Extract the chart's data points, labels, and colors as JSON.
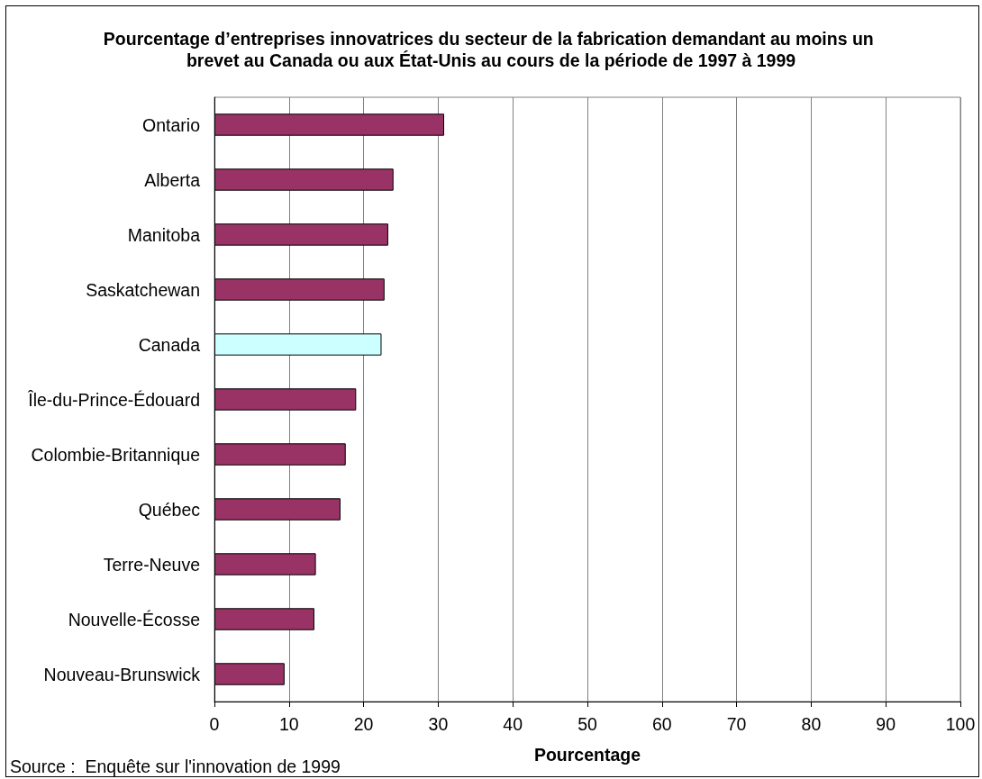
{
  "chart_data": {
    "type": "bar",
    "orientation": "horizontal",
    "title": "Pourcentage d’entreprises innovatrices du secteur de la fabrication demandant au moins un brevet au Canada ou aux État-Unis au cours de la période de 1997 à 1999",
    "categories": [
      "Ontario",
      "Alberta",
      "Manitoba",
      "Saskatchewan",
      "Canada",
      "Île-du-Prince-Édouard",
      "Colombie-Britannique",
      "Québec",
      "Terre-Neuve",
      "Nouvelle-Écosse",
      "Nouveau-Brunswick"
    ],
    "values": [
      30.8,
      24.0,
      23.3,
      22.8,
      22.4,
      19.0,
      17.6,
      16.9,
      13.6,
      13.4,
      9.4
    ],
    "colors": [
      "#993366",
      "#993366",
      "#993366",
      "#993366",
      "#ccffff",
      "#993366",
      "#993366",
      "#993366",
      "#993366",
      "#993366",
      "#993366"
    ],
    "xlim": [
      0,
      100
    ],
    "xticks": [
      0,
      10,
      20,
      30,
      40,
      50,
      60,
      70,
      80,
      90,
      100
    ],
    "xlabel": "Pourcentage",
    "grid": "x",
    "annotations": [
      "Source :  Enquête sur l'innovation de 1999"
    ]
  }
}
